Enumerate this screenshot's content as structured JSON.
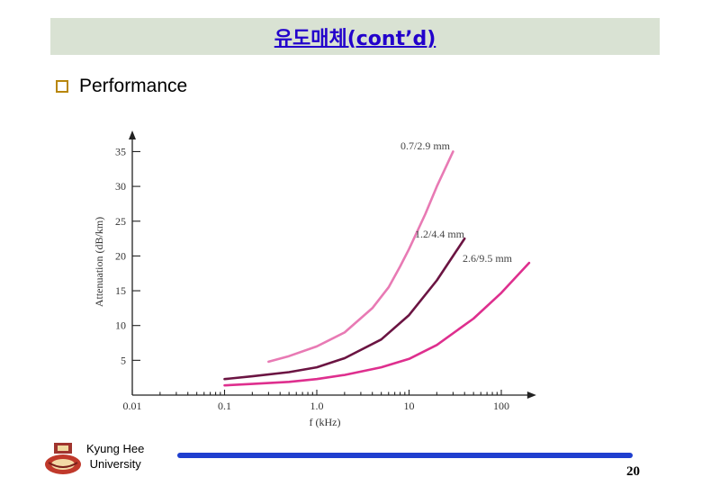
{
  "slide": {
    "title": "유도매체(cont’d)",
    "bullet": "Performance",
    "footer_line1": "Kyung Hee",
    "footer_line2": "University",
    "page_number": "20"
  },
  "colors": {
    "title_bg": "#d9e2d3",
    "title_text": "#2200cc",
    "bullet_box": "#b8860b",
    "footer_bar": "#1f3fcf"
  },
  "chart_data": {
    "type": "line",
    "xscale": "log",
    "xlabel": "f (kHz)",
    "ylabel": "Attenuation (dB/km)",
    "xlim": [
      0.01,
      200
    ],
    "ylim": [
      0,
      37
    ],
    "xticks": [
      0.01,
      0.1,
      1.0,
      10,
      100
    ],
    "xtick_labels": [
      "0.01",
      "0.1",
      "1.0",
      "10",
      "100"
    ],
    "yticks": [
      5,
      10,
      15,
      20,
      25,
      30,
      35
    ],
    "series": [
      {
        "name": "0.7/2.9 mm",
        "color": "#e87ab4",
        "x": [
          0.3,
          0.5,
          1.0,
          2.0,
          4.0,
          6.0,
          8.0,
          10.0,
          15.0,
          20.0,
          30.0
        ],
        "y": [
          4.8,
          5.6,
          7.0,
          9.0,
          12.5,
          15.5,
          18.5,
          21.0,
          26.0,
          30.0,
          35.0
        ]
      },
      {
        "name": "1.2/4.4 mm",
        "color": "#6b1442",
        "x": [
          0.1,
          0.2,
          0.5,
          1.0,
          2.0,
          5.0,
          10.0,
          20.0,
          30.0,
          40.0
        ],
        "y": [
          2.3,
          2.7,
          3.3,
          4.0,
          5.3,
          8.0,
          11.5,
          16.5,
          20.0,
          22.5
        ]
      },
      {
        "name": "2.6/9.5 mm",
        "color": "#de2f8e",
        "x": [
          0.1,
          0.2,
          0.5,
          1.0,
          2.0,
          5.0,
          10.0,
          20.0,
          50.0,
          100.0,
          200.0
        ],
        "y": [
          1.4,
          1.6,
          1.9,
          2.3,
          2.9,
          4.0,
          5.2,
          7.2,
          11.0,
          14.7,
          19.0
        ]
      }
    ]
  }
}
